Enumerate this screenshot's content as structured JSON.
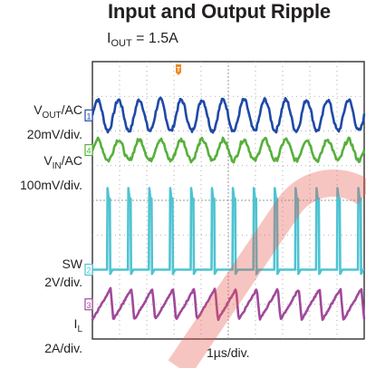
{
  "chart_data": {
    "type": "line",
    "title": "Input and Output Ripple",
    "subtitle_main": "I",
    "subtitle_sub": "OUT",
    "subtitle_rest": " = 1.5A",
    "xlabel": "1µs/div.",
    "grid": true,
    "x_divisions": 10,
    "y_divisions": 8,
    "trigger_marker": "T",
    "series": [
      {
        "main": "V",
        "sub": "OUT",
        "rest": "/AC",
        "scale": "20mV/div.",
        "channel": "1",
        "color": "#1f49a6",
        "waveform": "ripple",
        "periods": 13,
        "level_div": 1.55,
        "ripple_div": 0.45
      },
      {
        "main": "V",
        "sub": "IN",
        "rest": "/AC",
        "scale": "100mV/div.",
        "channel": "4",
        "color": "#56b03a",
        "waveform": "ripple",
        "periods": 13,
        "level_div": 2.55,
        "ripple_div": 0.3
      },
      {
        "main": "SW",
        "sub": "",
        "rest": "",
        "scale": "2V/div.",
        "channel": "2",
        "color": "#4ec3d2",
        "waveform": "pulse",
        "periods": 13,
        "low_div": 6.0,
        "high_div": 3.9,
        "duty": 0.13
      },
      {
        "main": "I",
        "sub": "L",
        "rest": "",
        "scale": "2A/div.",
        "channel": "3",
        "color": "#a0489b",
        "waveform": "sawtooth",
        "periods": 13,
        "level_div": 7.0,
        "ripple_div": 0.45,
        "rise_fraction": 0.87
      }
    ]
  }
}
